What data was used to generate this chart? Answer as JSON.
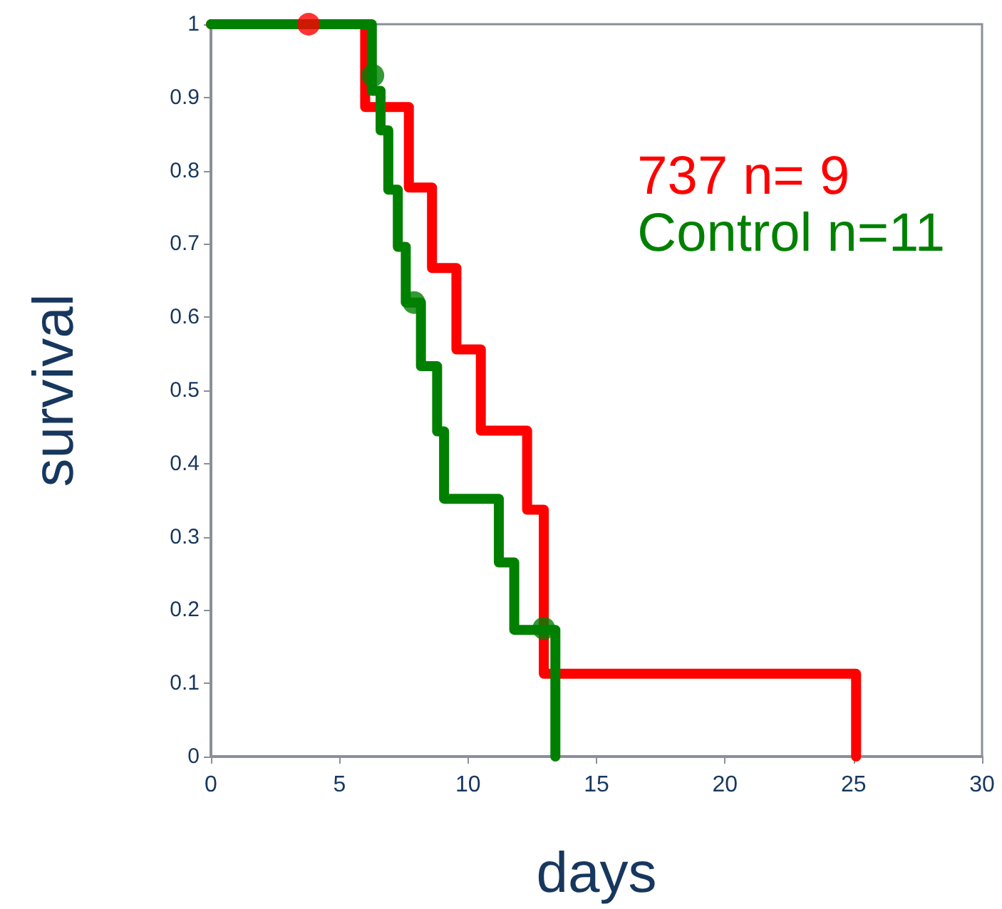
{
  "chart_data": {
    "type": "step",
    "xlabel": "days",
    "ylabel": "survival",
    "legend": "top right",
    "grid": false,
    "xlim": [
      0,
      30
    ],
    "xticks": [
      0,
      5,
      10,
      15,
      20,
      25,
      30
    ],
    "ylim": [
      0,
      1
    ],
    "yticks": [
      0,
      0.1,
      0.2,
      0.3,
      0.4,
      0.5,
      0.6,
      0.7,
      0.8,
      0.9,
      1
    ],
    "line_style": "solid",
    "series": [
      {
        "name": "737 n= 9",
        "color": "#ff0000",
        "x": [
          0,
          6.0,
          7.7,
          8.6,
          9.55,
          10.5,
          12.3,
          12.95,
          25.1
        ],
        "values": [
          1,
          0.887,
          0.777,
          0.667,
          0.556,
          0.445,
          0.337,
          0.113,
          0
        ]
      },
      {
        "name": "Control n=11",
        "color": "#008000",
        "x": [
          0,
          6.26,
          6.6,
          6.9,
          7.27,
          7.58,
          8.17,
          8.8,
          9.07,
          11.2,
          11.8,
          13.4
        ],
        "values": [
          1,
          0.909,
          0.855,
          0.774,
          0.696,
          0.62,
          0.533,
          0.444,
          0.352,
          0.265,
          0.173,
          0
        ]
      },
      {
        "type": "scatter",
        "color": "#ff0000",
        "x": [
          3.8
        ],
        "values": [
          1
        ]
      },
      {
        "type": "scatter",
        "color": "#008000",
        "x": [
          6.3,
          7.9,
          12.95
        ],
        "values": [
          0.93,
          0.62,
          0.175
        ]
      }
    ]
  }
}
